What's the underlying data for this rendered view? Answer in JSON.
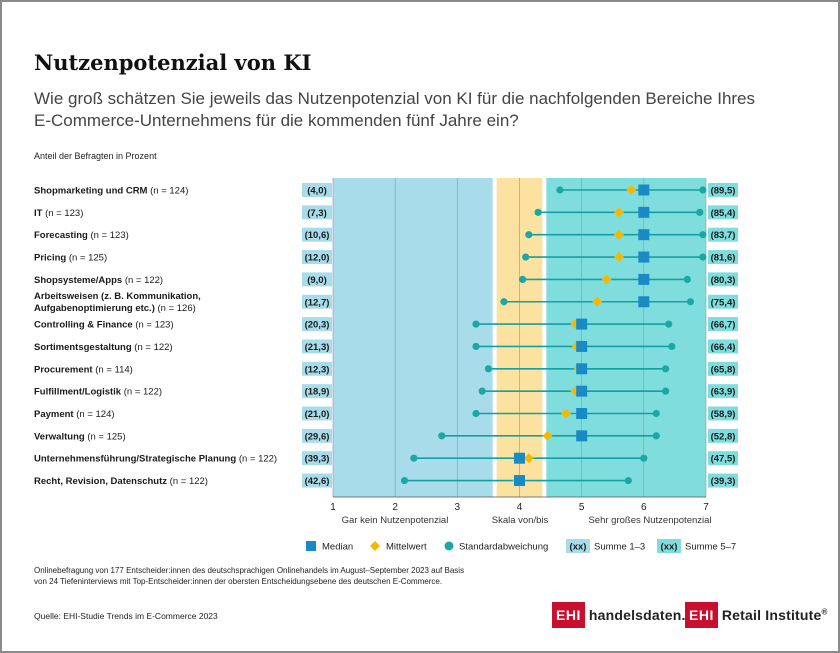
{
  "title": "Nutzenpotenzial von KI",
  "subtitle": "Wie groß schätzen Sie jeweils das Nutzenpotenzial von KI für die nachfolgenden Bereiche Ihres E-Commerce-Unternehmens  für die kommenden fünf Jahre ein?",
  "unit_label": "Anteil der Befragten in Prozent",
  "colors": {
    "zone_low": "#a8dcea",
    "zone_mid": "#fbe2a0",
    "zone_high": "#7fdedd",
    "median": "#1a8ac4",
    "mean": "#f5b800",
    "sd": "#1ba8a4",
    "line": "#14a0a0",
    "sum_low_bg": "#a8dcea",
    "sum_high_bg": "#7fdedd"
  },
  "chart_data": {
    "type": "dot-range",
    "scale": {
      "min": 1,
      "max": 7,
      "ticks": [
        1,
        2,
        3,
        4,
        5,
        6,
        7
      ]
    },
    "zones": [
      {
        "from": 1,
        "to": 3.6,
        "label": "Gar kein Nutzenpotenzial"
      },
      {
        "from": 3.6,
        "to": 4.4,
        "label": "Skala von/bis"
      },
      {
        "from": 4.4,
        "to": 7,
        "label": "Sehr großes Nutzenpotenzial"
      }
    ],
    "rows": [
      {
        "label": "Shopmarketing und CRM",
        "n": "(n = 124)",
        "sum_low": "(4,0)",
        "sum_high": "(89,5)",
        "median": 6,
        "mean": 5.8,
        "sd_low": 4.65,
        "sd_high": 6.95
      },
      {
        "label": "IT",
        "n": "(n = 123)",
        "sum_low": "(7,3)",
        "sum_high": "(85,4)",
        "median": 6,
        "mean": 5.6,
        "sd_low": 4.3,
        "sd_high": 6.9
      },
      {
        "label": "Forecasting",
        "n": "(n = 123)",
        "sum_low": "(10,6)",
        "sum_high": "(83,7)",
        "median": 6,
        "mean": 5.6,
        "sd_low": 4.15,
        "sd_high": 6.95
      },
      {
        "label": "Pricing",
        "n": "(n = 125)",
        "sum_low": "(12,0)",
        "sum_high": "(81,6)",
        "median": 6,
        "mean": 5.6,
        "sd_low": 4.1,
        "sd_high": 6.95
      },
      {
        "label": "Shopsysteme/Apps",
        "n": "(n = 122)",
        "sum_low": "(9,0)",
        "sum_high": "(80,3)",
        "median": 6,
        "mean": 5.4,
        "sd_low": 4.05,
        "sd_high": 6.7
      },
      {
        "label": "Arbeitsweisen  (z. B. Kommunikation, ",
        "label2": "Aufgabenoptimierung etc.)",
        "n": "(n = 126)",
        "sum_low": "(12,7)",
        "sum_high": "(75,4)",
        "median": 6,
        "mean": 5.25,
        "sd_low": 3.75,
        "sd_high": 6.75
      },
      {
        "label": "Controlling  & Finance",
        "n": "(n = 123)",
        "sum_low": "(20,3)",
        "sum_high": "(66,7)",
        "median": 5,
        "mean": 4.9,
        "sd_low": 3.3,
        "sd_high": 6.4
      },
      {
        "label": "Sortimentsgestaltung",
        "n": "(n = 122)",
        "sum_low": "(21,3)",
        "sum_high": "(66,4)",
        "median": 5,
        "mean": 4.92,
        "sd_low": 3.3,
        "sd_high": 6.45
      },
      {
        "label": "Procurement",
        "n": "(n = 114)",
        "sum_low": "(12,3)",
        "sum_high": "(65,8)",
        "median": 5,
        "mean": 4.95,
        "sd_low": 3.5,
        "sd_high": 6.35
      },
      {
        "label": "Fulfillment/Logistik",
        "n": "(n = 122)",
        "sum_low": "(18,9)",
        "sum_high": "(63,9)",
        "median": 5,
        "mean": 4.9,
        "sd_low": 3.4,
        "sd_high": 6.35
      },
      {
        "label": "Payment",
        "n": "(n = 124)",
        "sum_low": "(21,0)",
        "sum_high": "(58,9)",
        "median": 5,
        "mean": 4.75,
        "sd_low": 3.3,
        "sd_high": 6.2
      },
      {
        "label": "Verwaltung",
        "n": "(n = 125)",
        "sum_low": "(29,6)",
        "sum_high": "(52,8)",
        "median": 5,
        "mean": 4.45,
        "sd_low": 2.75,
        "sd_high": 6.2
      },
      {
        "label": "Unternehmensführung/Strategische  Planung",
        "n": "(n = 122)",
        "sum_low": "(39,3)",
        "sum_high": "(47,5)",
        "median": 4,
        "mean": 4.15,
        "sd_low": 2.3,
        "sd_high": 6.0
      },
      {
        "label": "Recht, Revision, Datenschutz",
        "n": "(n = 122)",
        "sum_low": "(42,6)",
        "sum_high": "(39,3)",
        "median": 4,
        "mean": 3.97,
        "sd_low": 2.15,
        "sd_high": 5.75
      }
    ],
    "legend": {
      "median": "Median",
      "mean": "Mittelwert",
      "sd": "Standardabweichung",
      "sum_low_box": "(xx)",
      "sum_low": "Summe 1–3",
      "sum_high_box": "(xx)",
      "sum_high": "Summe 5–7"
    }
  },
  "footnote_line1": "Onlinebefragung von 177 Entscheider:innen des deutschsprachigen Onlinehandels im August–September 2023 auf Basis",
  "footnote_line2": "von 24 Tiefeninterviews mit Top-Entscheider:innen der obersten Entscheidungsebene des deutschen E-Commerce.",
  "source": "Quelle: EHI-Studie Trends im E-Commerce 2023",
  "logo_left": {
    "mark": "EHI",
    "text": "handelsdaten.de"
  },
  "logo_right": {
    "mark": "EHI",
    "text": "Retail Institute",
    "reg": "®"
  }
}
